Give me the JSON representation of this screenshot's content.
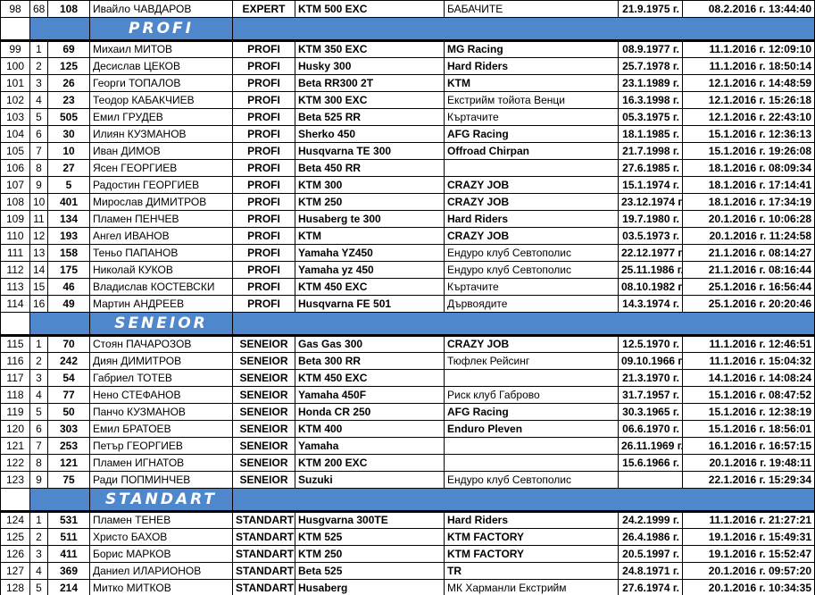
{
  "colors": {
    "section_blue": "#4E87CB",
    "grid_line": "#000000",
    "header_text": "#FFFFFF"
  },
  "table": {
    "sections": [
      {
        "header": null,
        "rows": [
          {
            "no": "98",
            "pos": "68",
            "num": "108",
            "name": "Ивайло ЧАВДАРОВ",
            "cls": "EXPERT",
            "bike": "KTM 500 EXC",
            "team": "БАБАЧИТЕ",
            "born": "21.9.1975 г.",
            "reg": "08.2.2016 г. 13:44:40"
          }
        ]
      },
      {
        "header": "PROFI",
        "rows": [
          {
            "no": "99",
            "pos": "1",
            "num": "69",
            "name": "Михаил МИТОВ",
            "cls": "PROFI",
            "bike": "KTM 350 EXC",
            "team": "MG Racing",
            "born": "08.9.1977 г.",
            "reg": "11.1.2016 г. 12:09:10"
          },
          {
            "no": "100",
            "pos": "2",
            "num": "125",
            "name": "Десислав ЦЕКОВ",
            "cls": "PROFI",
            "bike": "Husky 300",
            "team": "Hard Riders",
            "born": "25.7.1978 г.",
            "reg": "11.1.2016 г. 18:50:14"
          },
          {
            "no": "101",
            "pos": "3",
            "num": "26",
            "name": "Георги ТОПАЛОВ",
            "cls": "PROFI",
            "bike": "Beta RR300 2T",
            "team": "KTM",
            "born": "23.1.1989 г.",
            "reg": "12.1.2016 г. 14:48:59"
          },
          {
            "no": "102",
            "pos": "4",
            "num": "23",
            "name": "Теодор КАБАКЧИЕВ",
            "cls": "PROFI",
            "bike": "KTM 300 EXC",
            "team": "Екстрийм тойота Венци",
            "born": "16.3.1998 г.",
            "reg": "12.1.2016 г. 15:26:18"
          },
          {
            "no": "103",
            "pos": "5",
            "num": "505",
            "name": "Емил ГРУДЕВ",
            "cls": "PROFI",
            "bike": "Beta 525 RR",
            "team": "Къртачите",
            "born": "05.3.1975 г.",
            "reg": "12.1.2016 г. 22:43:10"
          },
          {
            "no": "104",
            "pos": "6",
            "num": "30",
            "name": "Илиян КУЗМАНОВ",
            "cls": "PROFI",
            "bike": "Sherko 450",
            "team": "AFG Racing",
            "born": "18.1.1985 г.",
            "reg": "15.1.2016 г. 12:36:13"
          },
          {
            "no": "105",
            "pos": "7",
            "num": "10",
            "name": "Иван ДИМОВ",
            "cls": "PROFI",
            "bike": "Husqvarna TE 300",
            "team": "Offroad Chirpan",
            "born": "21.7.1998 г.",
            "reg": "15.1.2016 г. 19:26:08"
          },
          {
            "no": "106",
            "pos": "8",
            "num": "27",
            "name": "Ясен ГЕОРГИЕВ",
            "cls": "PROFI",
            "bike": "Beta 450 RR",
            "team": "",
            "born": "27.6.1985 г.",
            "reg": "18.1.2016 г. 08:09:34"
          },
          {
            "no": "107",
            "pos": "9",
            "num": "5",
            "name": "Радостин ГЕОРГИЕВ",
            "cls": "PROFI",
            "bike": "KTM 300",
            "team": "CRAZY JOB",
            "born": "15.1.1974 г.",
            "reg": "18.1.2016 г. 17:14:41"
          },
          {
            "no": "108",
            "pos": "10",
            "num": "401",
            "name": "Мирослав ДИМИТРОВ",
            "cls": "PROFI",
            "bike": "KTM 250",
            "team": "CRAZY JOB",
            "born": "23.12.1974 г.",
            "reg": "18.1.2016 г. 17:34:19"
          },
          {
            "no": "109",
            "pos": "11",
            "num": "134",
            "name": "Пламен ПЕНЧЕВ",
            "cls": "PROFI",
            "bike": "Husaberg te 300",
            "team": "Hard Riders",
            "born": "19.7.1980 г.",
            "reg": "20.1.2016 г. 10:06:28"
          },
          {
            "no": "110",
            "pos": "12",
            "num": "193",
            "name": "Ангел ИВАНОВ",
            "cls": "PROFI",
            "bike": "KTM",
            "team": "CRAZY JOB",
            "born": "03.5.1973 г.",
            "reg": "20.1.2016 г. 11:24:58"
          },
          {
            "no": "111",
            "pos": "13",
            "num": "158",
            "name": "Теньо ПАПАНОВ",
            "cls": "PROFI",
            "bike": "Yamaha YZ450",
            "team": "Ендуро клуб Севтополис",
            "born": "22.12.1977 г.",
            "reg": "21.1.2016 г. 08:14:27"
          },
          {
            "no": "112",
            "pos": "14",
            "num": "175",
            "name": "Николай КУКОВ",
            "cls": "PROFI",
            "bike": "Yamaha yz 450",
            "team": "Ендуро клуб Севтополис",
            "born": "25.11.1986 г.",
            "reg": "21.1.2016 г. 08:16:44"
          },
          {
            "no": "113",
            "pos": "15",
            "num": "46",
            "name": "Владислав КОСТЕВСКИ",
            "cls": "PROFI",
            "bike": "KTM 450 EXC",
            "team": "Къртачите",
            "born": "08.10.1982 г.",
            "reg": "25.1.2016 г. 16:56:44"
          },
          {
            "no": "114",
            "pos": "16",
            "num": "49",
            "name": "Мартин АНДРЕЕВ",
            "cls": "PROFI",
            "bike": "Husqvarna FE 501",
            "team": "Дървоядите",
            "born": "14.3.1974 г.",
            "reg": "25.1.2016 г. 20:20:46"
          }
        ]
      },
      {
        "header": "SENEIOR",
        "rows": [
          {
            "no": "115",
            "pos": "1",
            "num": "70",
            "name": "Стоян ПАЧАРОЗОВ",
            "cls": "SENEIOR",
            "bike": "Gas Gas 300",
            "team": "CRAZY JOB",
            "born": "12.5.1970 г.",
            "reg": "11.1.2016 г. 12:46:51"
          },
          {
            "no": "116",
            "pos": "2",
            "num": "242",
            "name": "Диян ДИМИТРОВ",
            "cls": "SENEIOR",
            "bike": "Beta 300 RR",
            "team": "Тюфлек Рейсинг",
            "born": "09.10.1966 г.",
            "reg": "11.1.2016 г. 15:04:32"
          },
          {
            "no": "117",
            "pos": "3",
            "num": "54",
            "name": "Габриел ТОТЕВ",
            "cls": "SENEIOR",
            "bike": "KTM 450 EXC",
            "team": "",
            "born": "21.3.1970 г.",
            "reg": "14.1.2016 г. 14:08:24"
          },
          {
            "no": "118",
            "pos": "4",
            "num": "77",
            "name": "Нено СТЕФАНОВ",
            "cls": "SENEIOR",
            "bike": "Yamaha 450F",
            "team": "Риск клуб Габрово",
            "born": "31.7.1957 г.",
            "reg": "15.1.2016 г. 08:47:52"
          },
          {
            "no": "119",
            "pos": "5",
            "num": "50",
            "name": "Панчо КУЗМАНОВ",
            "cls": "SENEIOR",
            "bike": "Honda CR 250",
            "team": "AFG Racing",
            "born": "30.3.1965 г.",
            "reg": "15.1.2016 г. 12:38:19"
          },
          {
            "no": "120",
            "pos": "6",
            "num": "303",
            "name": "Емил БРАТОЕВ",
            "cls": "SENEIOR",
            "bike": "KTM 400",
            "team": "Enduro Pleven",
            "born": "06.6.1970 г.",
            "reg": "15.1.2016 г. 18:56:01"
          },
          {
            "no": "121",
            "pos": "7",
            "num": "253",
            "name": "Петър ГЕОРГИЕВ",
            "cls": "SENEIOR",
            "bike": "Yamaha",
            "team": "",
            "born": "26.11.1969 г.",
            "reg": "16.1.2016 г. 16:57:15"
          },
          {
            "no": "122",
            "pos": "8",
            "num": "121",
            "name": "Пламен ИГНАТОВ",
            "cls": "SENEIOR",
            "bike": "KTM 200 EXC",
            "team": "",
            "born": "15.6.1966 г.",
            "reg": "20.1.2016 г. 19:48:11"
          },
          {
            "no": "123",
            "pos": "9",
            "num": "75",
            "name": "Ради ПОПМИНЧЕВ",
            "cls": "SENEIOR",
            "bike": "Suzuki",
            "team": "Ендуро клуб Севтополис",
            "born": "",
            "reg": "22.1.2016 г. 15:29:34"
          }
        ]
      },
      {
        "header": "STANDART",
        "rows": [
          {
            "no": "124",
            "pos": "1",
            "num": "531",
            "name": "Пламен ТЕНЕВ",
            "cls": "STANDART",
            "bike": "Husgvarna 300TE",
            "team": "Hard Riders",
            "born": "24.2.1999 г.",
            "reg": "11.1.2016 г. 21:27:21"
          },
          {
            "no": "125",
            "pos": "2",
            "num": "511",
            "name": "Христо БАХОВ",
            "cls": "STANDART",
            "bike": "KTM 525",
            "team": "KTM FACTORY",
            "born": "26.4.1986 г.",
            "reg": "19.1.2016 г. 15:49:31"
          },
          {
            "no": "126",
            "pos": "3",
            "num": "411",
            "name": "Борис МАРКОВ",
            "cls": "STANDART",
            "bike": "KTM 250",
            "team": "KTM FACTORY",
            "born": "20.5.1997 г.",
            "reg": "19.1.2016 г. 15:52:47"
          },
          {
            "no": "127",
            "pos": "4",
            "num": "369",
            "name": "Даниел ИЛАРИОНОВ",
            "cls": "STANDART",
            "bike": "Beta 525",
            "team": "TR",
            "born": "24.8.1971 г.",
            "reg": "20.1.2016 г. 09:57:20"
          },
          {
            "no": "128",
            "pos": "5",
            "num": "214",
            "name": "Митко МИТКОВ",
            "cls": "STANDART",
            "bike": "Husaberg",
            "team": "МК Харманли Екстрийм",
            "born": "27.6.1974 г.",
            "reg": "20.1.2016 г. 10:34:35"
          }
        ]
      }
    ]
  }
}
